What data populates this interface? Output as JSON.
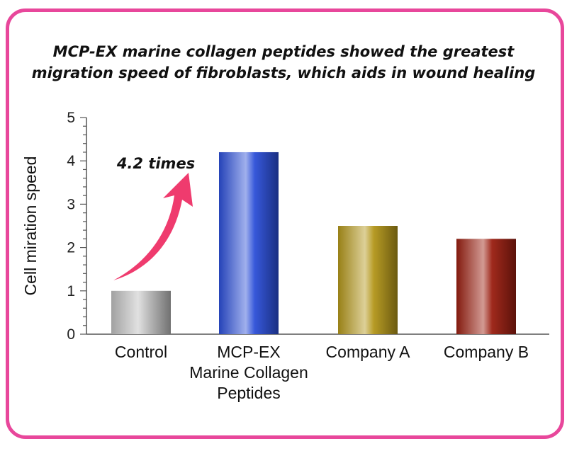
{
  "colors": {
    "frame": "#e8479b",
    "axis": "#555555",
    "arrow": "#ef3b6e",
    "control": "#bdbdbd",
    "mcp": "#2c4fd8",
    "company_a": "#b3961a",
    "company_b": "#9a1e10"
  },
  "title_lines": [
    "MCP-EX marine collagen peptides showed the greatest",
    "migration speed of fibroblasts, which aids in wound healing"
  ],
  "annotation": "4.2 times",
  "chart_data": {
    "type": "bar",
    "title": "MCP-EX marine collagen peptides showed the greatest migration speed of fibroblasts, which aids in wound healing",
    "ylabel": "Cell miration speed",
    "xlabel": "",
    "ylim": [
      0,
      5
    ],
    "yticks": [
      0,
      1,
      2,
      3,
      4,
      5
    ],
    "grid": false,
    "categories": [
      [
        "Control"
      ],
      [
        "MCP-EX",
        "Marine Collagen",
        "Peptides"
      ],
      [
        "Company A"
      ],
      [
        "Company B"
      ]
    ],
    "values": [
      1.0,
      4.2,
      2.5,
      2.2
    ],
    "bar_colors": [
      "#bdbdbd",
      "#2c4fd8",
      "#b3961a",
      "#9a1e10"
    ],
    "annotations": [
      {
        "text": "4.2 times",
        "from_category": "Control",
        "to_category": "MCP-EX"
      }
    ]
  }
}
